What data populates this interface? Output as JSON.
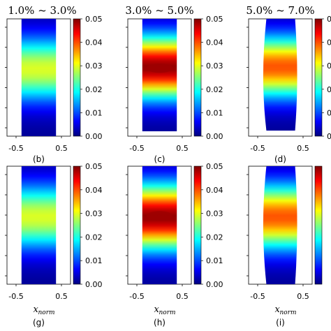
{
  "chart_data": [
    {
      "type": "heatmap",
      "panel": "(b)",
      "title": "1.0% ~ 3.0%",
      "xlim": [
        -0.7,
        0.7
      ],
      "x_ticks": [
        "-0.5",
        "0.5"
      ],
      "xlabel": "",
      "shape": "band",
      "peak": 0.03,
      "intensity": 0.95,
      "colorbar": {
        "min": 0.0,
        "max": 0.05,
        "ticks": [
          "0.00",
          "0.01",
          "0.02",
          "0.03",
          "0.04",
          "0.05"
        ]
      }
    },
    {
      "type": "heatmap",
      "panel": "(c)",
      "title": "3.0% ~ 5.0%",
      "xlim": [
        -0.7,
        0.7
      ],
      "x_ticks": [
        "-0.5",
        "0.5"
      ],
      "xlabel": "",
      "shape": "band",
      "peak": 0.048,
      "intensity": 1.0,
      "colorbar": {
        "min": 0.0,
        "max": 0.05,
        "ticks": [
          "0.00",
          "0.01",
          "0.02",
          "0.03",
          "0.04",
          "0.05"
        ]
      }
    },
    {
      "type": "heatmap",
      "panel": "(d)",
      "title": "5.0% ~ 7.0%",
      "xlim": [
        -0.7,
        0.7
      ],
      "x_ticks": [
        "-0.5",
        "0.5"
      ],
      "xlabel": "",
      "shape": "bulge",
      "peak": 0.042,
      "intensity": 0.92,
      "colorbar": {
        "min": 0.0,
        "max": 0.05,
        "ticks": [
          "0.00",
          "0.01",
          "0.02",
          "0.03",
          "0.04",
          "0.05"
        ]
      }
    },
    {
      "type": "heatmap",
      "panel": "(g)",
      "title": "",
      "xlim": [
        -0.7,
        0.7
      ],
      "x_ticks": [
        "-0.5",
        "0.5"
      ],
      "xlabel": "x",
      "xlabel_sub": "norm",
      "shape": "band",
      "peak": 0.03,
      "intensity": 0.95,
      "colorbar": {
        "min": 0.0,
        "max": 0.05,
        "ticks": [
          "0.00",
          "0.01",
          "0.02",
          "0.03",
          "0.04",
          "0.05"
        ]
      }
    },
    {
      "type": "heatmap",
      "panel": "(h)",
      "title": "",
      "xlim": [
        -0.7,
        0.7
      ],
      "x_ticks": [
        "-0.5",
        "0.5"
      ],
      "xlabel": "x",
      "xlabel_sub": "norm",
      "shape": "band",
      "peak": 0.048,
      "intensity": 1.0,
      "colorbar": {
        "min": 0.0,
        "max": 0.05,
        "ticks": [
          "0.00",
          "0.01",
          "0.02",
          "0.03",
          "0.04",
          "0.05"
        ]
      }
    },
    {
      "type": "heatmap",
      "panel": "(i)",
      "title": "",
      "xlim": [
        -0.7,
        0.7
      ],
      "x_ticks": [
        "-0.5",
        "0.5"
      ],
      "xlabel": "x",
      "xlabel_sub": "norm",
      "shape": "bulge",
      "peak": 0.042,
      "intensity": 0.92,
      "colorbar": {
        "min": 0.0,
        "max": 0.05,
        "ticks": []
      }
    }
  ],
  "colors": {
    "jet": [
      "#00007f",
      "#0000ff",
      "#007fff",
      "#00ffff",
      "#7fff7f",
      "#ffff00",
      "#ff7f00",
      "#ff0000",
      "#7f0000"
    ]
  }
}
